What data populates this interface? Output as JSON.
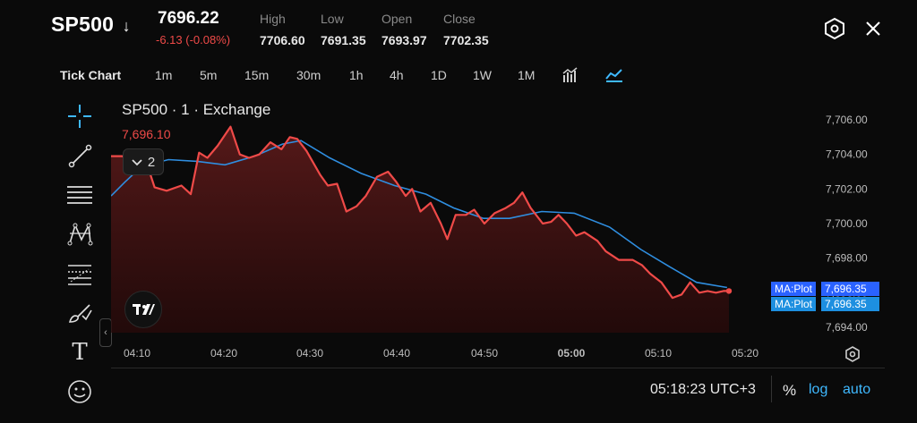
{
  "header": {
    "symbol": "SP500",
    "symbol_arrow": "↓",
    "price": "7696.22",
    "change": "-6.13 (-0.08%)",
    "ohlc": [
      {
        "label": "High",
        "value": "7706.60"
      },
      {
        "label": "Low",
        "value": "7691.35"
      },
      {
        "label": "Open",
        "value": "7693.97"
      },
      {
        "label": "Close",
        "value": "7702.35"
      }
    ],
    "icons": [
      "settings-hex-icon",
      "close-icon"
    ]
  },
  "timeframes": {
    "items": [
      "Tick Chart",
      "1m",
      "5m",
      "15m",
      "30m",
      "1h",
      "4h",
      "1D",
      "1W",
      "1M"
    ],
    "icons": [
      "indicators-icon",
      "chart-style-area-icon"
    ]
  },
  "chart": {
    "title": "SP500 · 1 · Exchange",
    "last_price": "7,696.10",
    "collapse_count": "2",
    "ma_tags": [
      {
        "label": "MA:Plot",
        "value": "7,696.35"
      },
      {
        "label": "MA:Plot",
        "value": "7,696.35"
      }
    ],
    "y_ticks": [
      "7,706.00",
      "7,704.00",
      "7,702.00",
      "7,700.00",
      "7,698.00",
      "7,696.00",
      "7,694.00"
    ],
    "x_ticks": [
      "04:10",
      "04:20",
      "04:30",
      "04:40",
      "04:50",
      "05:00",
      "05:10",
      "05:20"
    ],
    "colors": {
      "price_line": "#ef4a48",
      "ma_line": "#2f8ee0",
      "area_fill": "#4a1515",
      "background": "#0a0a0a"
    }
  },
  "chart_data": {
    "type": "area",
    "title": "SP500 · 1 · Exchange",
    "x": [
      "04:10",
      "04:20",
      "04:30",
      "04:40",
      "04:50",
      "05:00",
      "05:10",
      "05:20"
    ],
    "ylim": [
      7693,
      7707
    ],
    "grid": false,
    "series": [
      {
        "name": "",
        "values": [
          [
            0.0,
            7703.9
          ],
          [
            1.2,
            7703.9
          ],
          [
            2.4,
            7703.6
          ],
          [
            3.6,
            7703.9
          ],
          [
            4.7,
            7702.1
          ],
          [
            6.0,
            7701.9
          ],
          [
            7.6,
            7702.2
          ],
          [
            8.6,
            7701.7
          ],
          [
            9.5,
            7704.1
          ],
          [
            10.4,
            7703.8
          ],
          [
            11.5,
            7704.5
          ],
          [
            12.9,
            7705.6
          ],
          [
            13.9,
            7704.0
          ],
          [
            14.9,
            7703.8
          ],
          [
            16.0,
            7704.0
          ],
          [
            17.2,
            7704.7
          ],
          [
            18.4,
            7704.3
          ],
          [
            19.3,
            7705.0
          ],
          [
            20.1,
            7704.9
          ],
          [
            21.1,
            7704.2
          ],
          [
            22.6,
            7702.8
          ],
          [
            23.4,
            7702.2
          ],
          [
            24.4,
            7702.3
          ],
          [
            25.4,
            7700.7
          ],
          [
            26.5,
            7701.0
          ],
          [
            27.5,
            7701.6
          ],
          [
            28.7,
            7702.7
          ],
          [
            29.9,
            7703.0
          ],
          [
            30.8,
            7702.4
          ],
          [
            31.8,
            7701.6
          ],
          [
            32.5,
            7702.0
          ],
          [
            33.4,
            7700.7
          ],
          [
            34.5,
            7701.2
          ],
          [
            35.6,
            7700.0
          ],
          [
            36.3,
            7699.1
          ],
          [
            37.2,
            7700.5
          ],
          [
            38.3,
            7700.5
          ],
          [
            39.2,
            7700.8
          ],
          [
            40.3,
            7700.0
          ],
          [
            41.4,
            7700.6
          ],
          [
            42.6,
            7700.9
          ],
          [
            43.5,
            7701.2
          ],
          [
            44.4,
            7701.8
          ],
          [
            45.3,
            7700.9
          ],
          [
            46.6,
            7700.0
          ],
          [
            47.5,
            7700.1
          ],
          [
            48.3,
            7700.5
          ],
          [
            49.2,
            7700.0
          ],
          [
            50.2,
            7699.3
          ],
          [
            51.1,
            7699.5
          ],
          [
            52.5,
            7699.0
          ],
          [
            53.4,
            7698.4
          ],
          [
            54.8,
            7697.9
          ],
          [
            56.3,
            7697.9
          ],
          [
            57.3,
            7697.6
          ],
          [
            58.2,
            7697.1
          ],
          [
            59.4,
            7696.6
          ],
          [
            60.6,
            7695.7
          ],
          [
            61.6,
            7695.9
          ],
          [
            62.5,
            7696.6
          ],
          [
            63.5,
            7696.0
          ],
          [
            64.4,
            7696.1
          ],
          [
            65.3,
            7696.0
          ],
          [
            66.1,
            7696.1
          ],
          [
            66.7,
            7696.1
          ]
        ]
      },
      {
        "name": "MA:Plot",
        "values": [
          [
            0.0,
            7701.6
          ],
          [
            1.5,
            7702.4
          ],
          [
            3.3,
            7703.3
          ],
          [
            6.2,
            7703.7
          ],
          [
            9.3,
            7703.6
          ],
          [
            12.3,
            7703.4
          ],
          [
            15.5,
            7703.9
          ],
          [
            18.5,
            7704.6
          ],
          [
            20.5,
            7704.8
          ],
          [
            23.6,
            7703.8
          ],
          [
            27.0,
            7702.9
          ],
          [
            30.6,
            7702.2
          ],
          [
            34.0,
            7701.7
          ],
          [
            37.0,
            7700.9
          ],
          [
            40.2,
            7700.3
          ],
          [
            43.0,
            7700.3
          ],
          [
            46.5,
            7700.7
          ],
          [
            50.0,
            7700.6
          ],
          [
            53.8,
            7699.8
          ],
          [
            57.2,
            7698.5
          ],
          [
            60.3,
            7697.5
          ],
          [
            63.2,
            7696.6
          ],
          [
            66.5,
            7696.3
          ]
        ]
      }
    ]
  },
  "footer": {
    "time": "05:18:23 UTC+3",
    "pct": "%",
    "log": "log",
    "auto": "auto"
  },
  "toolbar": {
    "tools": [
      "crosshair-icon",
      "trend-line-icon",
      "horizontal-lines-icon",
      "pattern-icon",
      "fib-icon",
      "brush-icon",
      "text-icon",
      "emoji-icon"
    ],
    "text_tool_label": "T"
  }
}
